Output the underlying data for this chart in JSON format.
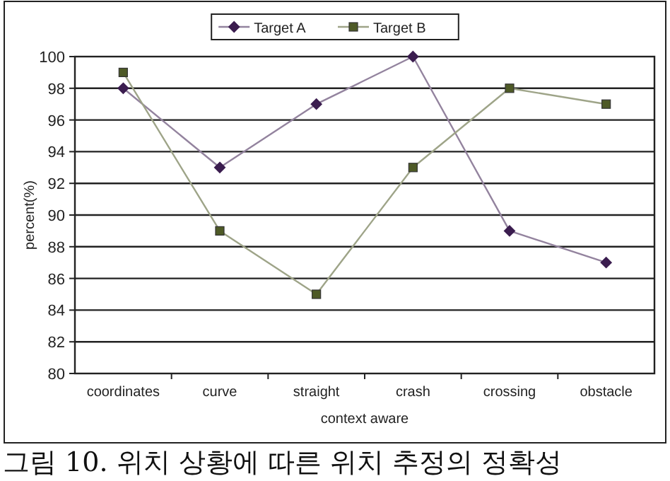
{
  "chart_data": {
    "type": "line",
    "xlabel": "context aware",
    "ylabel": "percent(%)",
    "categories": [
      "coordinates",
      "curve",
      "straight",
      "crash",
      "crossing",
      "obstacle"
    ],
    "series": [
      {
        "name": "Target A",
        "color": "#3b1d4f",
        "marker": "diamond",
        "values": [
          98,
          93,
          97,
          100,
          89,
          87
        ]
      },
      {
        "name": "Target B",
        "color": "#4e5a26",
        "marker": "square",
        "values": [
          99,
          89,
          85,
          93,
          98,
          97
        ]
      }
    ],
    "ylim": [
      80,
      100
    ],
    "yticks": [
      80,
      82,
      84,
      86,
      88,
      90,
      92,
      94,
      96,
      98,
      100
    ],
    "grid": "y",
    "legend": "top",
    "annotations": [
      "그림 10. 위치 상황에 따른 위치 추정의 정확성"
    ]
  }
}
